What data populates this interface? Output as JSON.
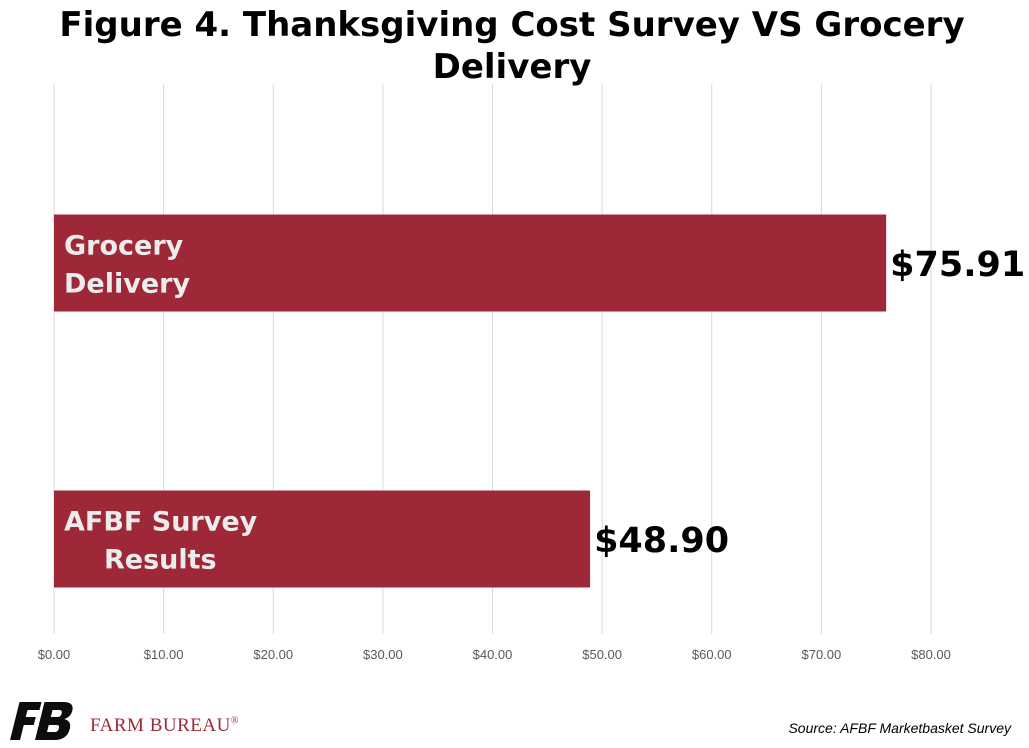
{
  "chart_data": {
    "type": "bar",
    "orientation": "horizontal",
    "title": "Figure 4. Thanksgiving Cost Survey VS Grocery Delivery",
    "categories": [
      [
        "Grocery",
        "Delivery"
      ],
      [
        "AFBF Survey",
        "Results"
      ]
    ],
    "values": [
      75.91,
      48.9
    ],
    "value_labels": [
      "$75.91",
      "$48.90"
    ],
    "xlim": [
      0,
      80
    ],
    "x_ticks": [
      0,
      10,
      20,
      30,
      40,
      50,
      60,
      70,
      80
    ],
    "x_tick_labels": [
      "$0.00",
      "$10.00",
      "$20.00",
      "$30.00",
      "$40.00",
      "$50.00",
      "$60.00",
      "$70.00",
      "$80.00"
    ],
    "grid": "vertical",
    "bar_color": "#9e2838",
    "bar_label_color": "#ececec",
    "gridline_color": "#d9d9d9"
  },
  "logo": {
    "text": "FARM BUREAU",
    "mark": "®",
    "color": "#9e2a36"
  },
  "source": "Source: AFBF Marketbasket Survey"
}
